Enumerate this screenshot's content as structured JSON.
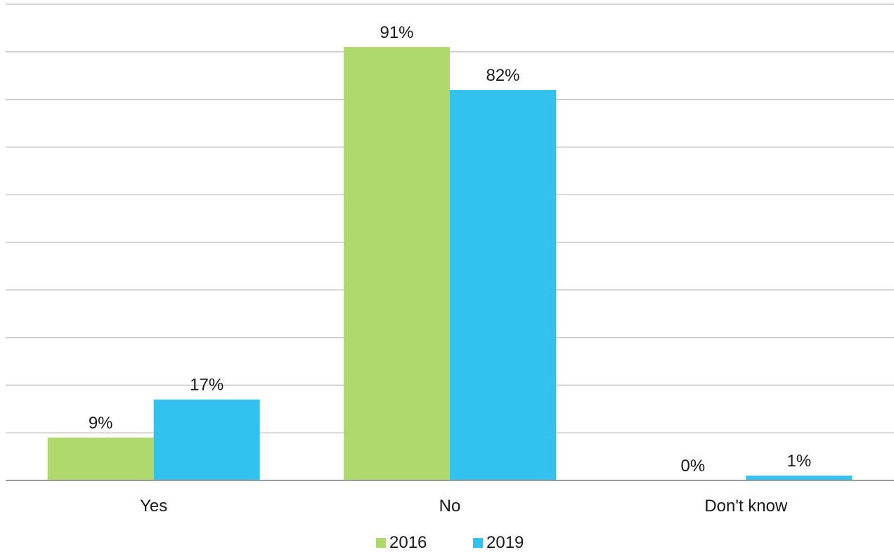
{
  "chart_data": {
    "type": "bar",
    "categories": [
      "Yes",
      "No",
      "Don't know"
    ],
    "series": [
      {
        "name": "2016",
        "values": [
          9,
          91,
          0
        ],
        "labels": [
          "9%",
          "91%",
          "0%"
        ],
        "color": "#b0d96d"
      },
      {
        "name": "2019",
        "values": [
          17,
          82,
          1
        ],
        "labels": [
          "17%",
          "82%",
          "1%"
        ],
        "color": "#33c2f0"
      }
    ],
    "ylim": [
      0,
      100
    ],
    "grid": true,
    "legend_position": "bottom"
  }
}
